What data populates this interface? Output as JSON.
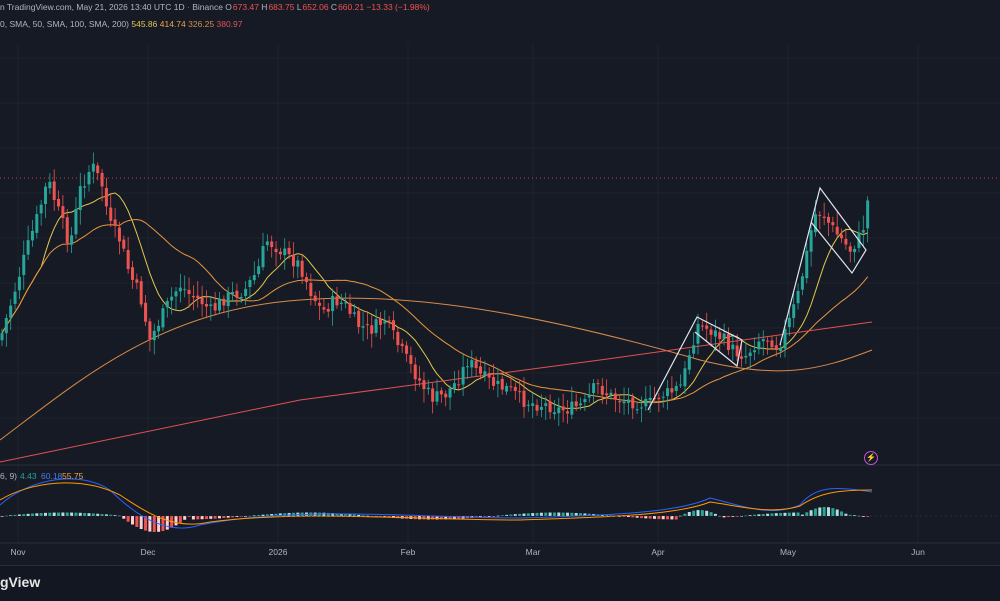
{
  "header": {
    "line1": {
      "prefix": "n TradingView.com, May 21, 2026 13:40 UTC",
      "interval": "1D",
      "exchange": "Binance",
      "o_label": "O",
      "o_value": "673.47",
      "h_label": "H",
      "h_value": "683.75",
      "l_label": "L",
      "l_value": "652.06",
      "c_label": "C",
      "c_value": "660.21",
      "change": "−13.33 (−1.98%)"
    },
    "line2": {
      "text": "0, SMA, 50, SMA, 100, SMA, 200)",
      "values": [
        {
          "v": "545.86",
          "color": "#e3c84a"
        },
        {
          "v": "414.74",
          "color": "#f0a646"
        },
        {
          "v": "326.25",
          "color": "#d88a4a"
        },
        {
          "v": "380.97",
          "color": "#e05252"
        }
      ]
    },
    "macd": {
      "text": "6, 9)",
      "values": [
        {
          "v": "4.43",
          "color": "#26a69a"
        },
        {
          "v": "60.18",
          "color": "#4b7bec"
        },
        {
          "v": "55.75",
          "color": "#f0a646"
        }
      ]
    }
  },
  "xaxis": {
    "labels": [
      "Nov",
      "Dec",
      "2026",
      "Feb",
      "Mar",
      "Apr",
      "May",
      "Jun"
    ]
  },
  "footer": {
    "logo": "gView"
  },
  "colors": {
    "up": "#26a69a",
    "down": "#ef5350",
    "ma20": "#e3c84a",
    "ma50": "#e8973c",
    "ma100": "#d88a4a",
    "ma200": "#e05252",
    "pattern": "#e0e6f0"
  }
}
